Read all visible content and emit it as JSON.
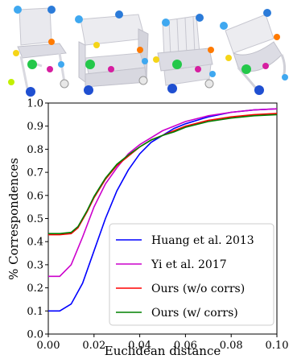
{
  "thumbnails": [
    {
      "name": "chair-1",
      "colors": [
        "#1f4fd1",
        "#f5d518",
        "#ff7a00",
        "#24c84a",
        "#d61ea0",
        "#3fa8f0",
        "#0a3b8c"
      ]
    },
    {
      "name": "chair-2",
      "colors": [
        "#1f4fd1",
        "#f5d518",
        "#ff7a00",
        "#24c84a",
        "#d61ea0",
        "#3fa8f0",
        "#0a3b8c"
      ]
    },
    {
      "name": "chair-3",
      "colors": [
        "#1f4fd1",
        "#f5d518",
        "#ff7a00",
        "#24c84a",
        "#d61ea0",
        "#3fa8f0",
        "#0a3b8c"
      ]
    },
    {
      "name": "chair-4",
      "colors": [
        "#1f4fd1",
        "#f5d518",
        "#ff7a00",
        "#24c84a",
        "#d61ea0",
        "#3fa8f0",
        "#0a3b8c"
      ]
    }
  ],
  "chart_data": {
    "type": "line",
    "xlabel": "Euclidean distance",
    "ylabel": "% Correspondences",
    "xlim": [
      0.0,
      0.1
    ],
    "ylim": [
      0.0,
      1.0
    ],
    "xticks": [
      "0.00",
      "0.02",
      "0.04",
      "0.06",
      "0.08",
      "0.10"
    ],
    "yticks": [
      "0.0",
      "0.1",
      "0.2",
      "0.3",
      "0.4",
      "0.5",
      "0.6",
      "0.7",
      "0.8",
      "0.9",
      "1.0"
    ],
    "grid": false,
    "legend_position": "bottom-right",
    "series": [
      {
        "name": "Huang et al. 2013",
        "color": "#0000ff",
        "x": [
          0,
          0.005,
          0.01,
          0.015,
          0.02,
          0.025,
          0.03,
          0.035,
          0.04,
          0.045,
          0.05,
          0.055,
          0.06,
          0.07,
          0.08,
          0.09,
          0.1
        ],
        "y": [
          0.1,
          0.1,
          0.13,
          0.22,
          0.36,
          0.5,
          0.62,
          0.71,
          0.78,
          0.83,
          0.86,
          0.89,
          0.91,
          0.94,
          0.96,
          0.97,
          0.975
        ]
      },
      {
        "name": "Yi et al. 2017",
        "color": "#cc00cc",
        "x": [
          0,
          0.005,
          0.01,
          0.015,
          0.02,
          0.025,
          0.03,
          0.035,
          0.04,
          0.045,
          0.05,
          0.055,
          0.06,
          0.07,
          0.08,
          0.09,
          0.1
        ],
        "y": [
          0.25,
          0.25,
          0.3,
          0.42,
          0.55,
          0.65,
          0.72,
          0.78,
          0.82,
          0.85,
          0.88,
          0.9,
          0.92,
          0.945,
          0.96,
          0.97,
          0.975
        ]
      },
      {
        "name": "Ours (w/o corrs)",
        "color": "#ff0000",
        "x": [
          0,
          0.005,
          0.01,
          0.013,
          0.017,
          0.02,
          0.025,
          0.03,
          0.035,
          0.04,
          0.045,
          0.05,
          0.055,
          0.06,
          0.07,
          0.08,
          0.09,
          0.1
        ],
        "y": [
          0.43,
          0.43,
          0.435,
          0.46,
          0.53,
          0.59,
          0.67,
          0.73,
          0.77,
          0.81,
          0.84,
          0.86,
          0.88,
          0.9,
          0.925,
          0.94,
          0.95,
          0.955
        ]
      },
      {
        "name": "Ours (w/ corrs)",
        "color": "#008000",
        "x": [
          0,
          0.005,
          0.01,
          0.013,
          0.017,
          0.02,
          0.025,
          0.03,
          0.035,
          0.04,
          0.045,
          0.05,
          0.055,
          0.06,
          0.07,
          0.08,
          0.09,
          0.1
        ],
        "y": [
          0.435,
          0.435,
          0.44,
          0.465,
          0.535,
          0.595,
          0.675,
          0.735,
          0.775,
          0.81,
          0.84,
          0.86,
          0.875,
          0.895,
          0.92,
          0.935,
          0.945,
          0.95
        ]
      }
    ]
  }
}
